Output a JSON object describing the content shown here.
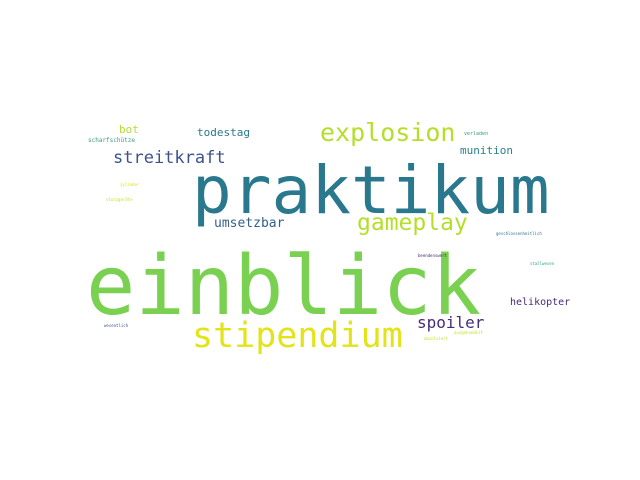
{
  "words": [
    {
      "text": "einblick",
      "color": "#7ad151"
    },
    {
      "text": "praktikum",
      "color": "#2a788e"
    },
    {
      "text": "stipendium",
      "color": "#e3e418"
    },
    {
      "text": "explosion",
      "color": "#b5de2b"
    },
    {
      "text": "gameplay",
      "color": "#b5de2b"
    },
    {
      "text": "streitkraft",
      "color": "#3b528b"
    },
    {
      "text": "spoiler",
      "color": "#472c7a"
    },
    {
      "text": "umsetzbar",
      "color": "#355f8d"
    },
    {
      "text": "todestag",
      "color": "#2a788e"
    },
    {
      "text": "munition",
      "color": "#26828e"
    },
    {
      "text": "bot",
      "color": "#b5de2b"
    },
    {
      "text": "helikopter",
      "color": "#482878"
    },
    {
      "text": "scharfschütze",
      "color": "#3e9c7a"
    },
    {
      "text": "verladen",
      "color": "#3e9c7a"
    },
    {
      "text": "zylinder",
      "color": "#d8e219"
    },
    {
      "text": "sturzgeräte",
      "color": "#bddf26"
    },
    {
      "text": "geschlossenheitlich",
      "color": "#2c728e"
    },
    {
      "text": "beendenswert",
      "color": "#482475"
    },
    {
      "text": "stallwesen",
      "color": "#21a685"
    },
    {
      "text": "absolviert",
      "color": "#c2df23"
    },
    {
      "text": "ausgehandelt",
      "color": "#bddf26"
    },
    {
      "text": "wesentlich",
      "color": "#3b528b"
    }
  ]
}
